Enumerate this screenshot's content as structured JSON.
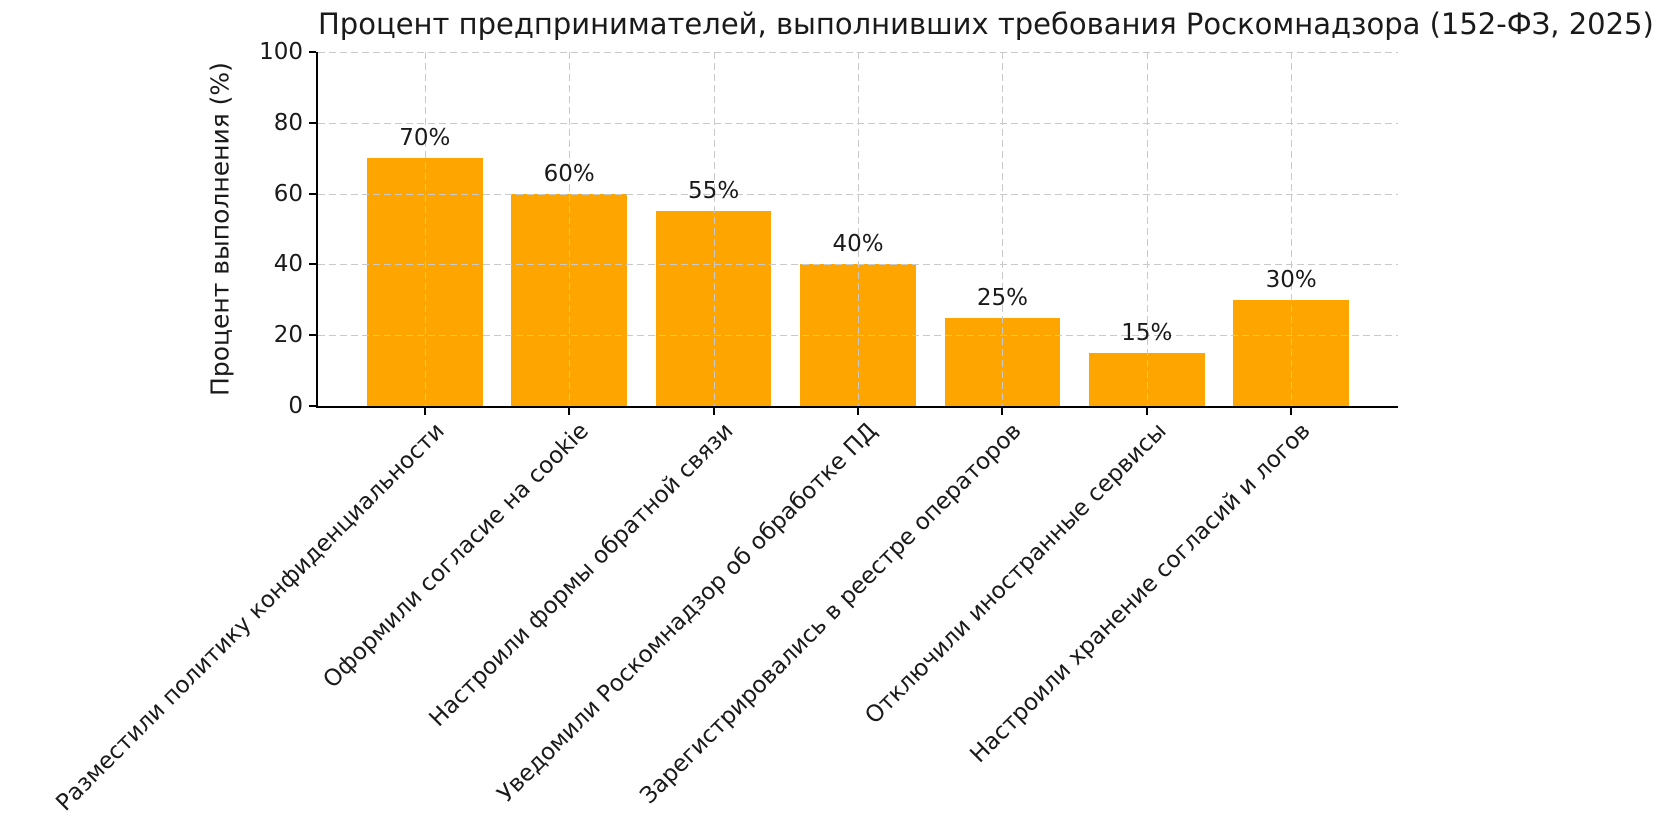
{
  "chart_data": {
    "type": "bar",
    "title": "Процент предпринимателей, выполнивших требования Роскомнадзора (152-ФЗ, 2025)",
    "xlabel": "",
    "ylabel": "Процент выполнения (%)",
    "categories": [
      "Разместили политику конфиденциальности",
      "Оформили согласие на cookie",
      "Настроили формы обратной связи",
      "Уведомили Роскомнадзор об обработке ПД",
      "Зарегистрировались в реестре операторов",
      "Отключили иностранные сервисы",
      "Настроили хранение согласий и логов"
    ],
    "values": [
      70,
      60,
      55,
      40,
      25,
      15,
      30
    ],
    "value_labels": [
      "70%",
      "60%",
      "55%",
      "40%",
      "25%",
      "15%",
      "30%"
    ],
    "ylim": [
      0,
      100
    ],
    "yticks": [
      0,
      20,
      40,
      60,
      80,
      100
    ],
    "bar_color": "#FFA500",
    "background_color": "#FFFFFF",
    "grid": "dashed, horizontal and vertical, drawn above bars",
    "grid_color": "#C9C9C9",
    "x_tick_rotation_deg": 45,
    "bar_width_fraction": 0.8,
    "legend": "none"
  }
}
